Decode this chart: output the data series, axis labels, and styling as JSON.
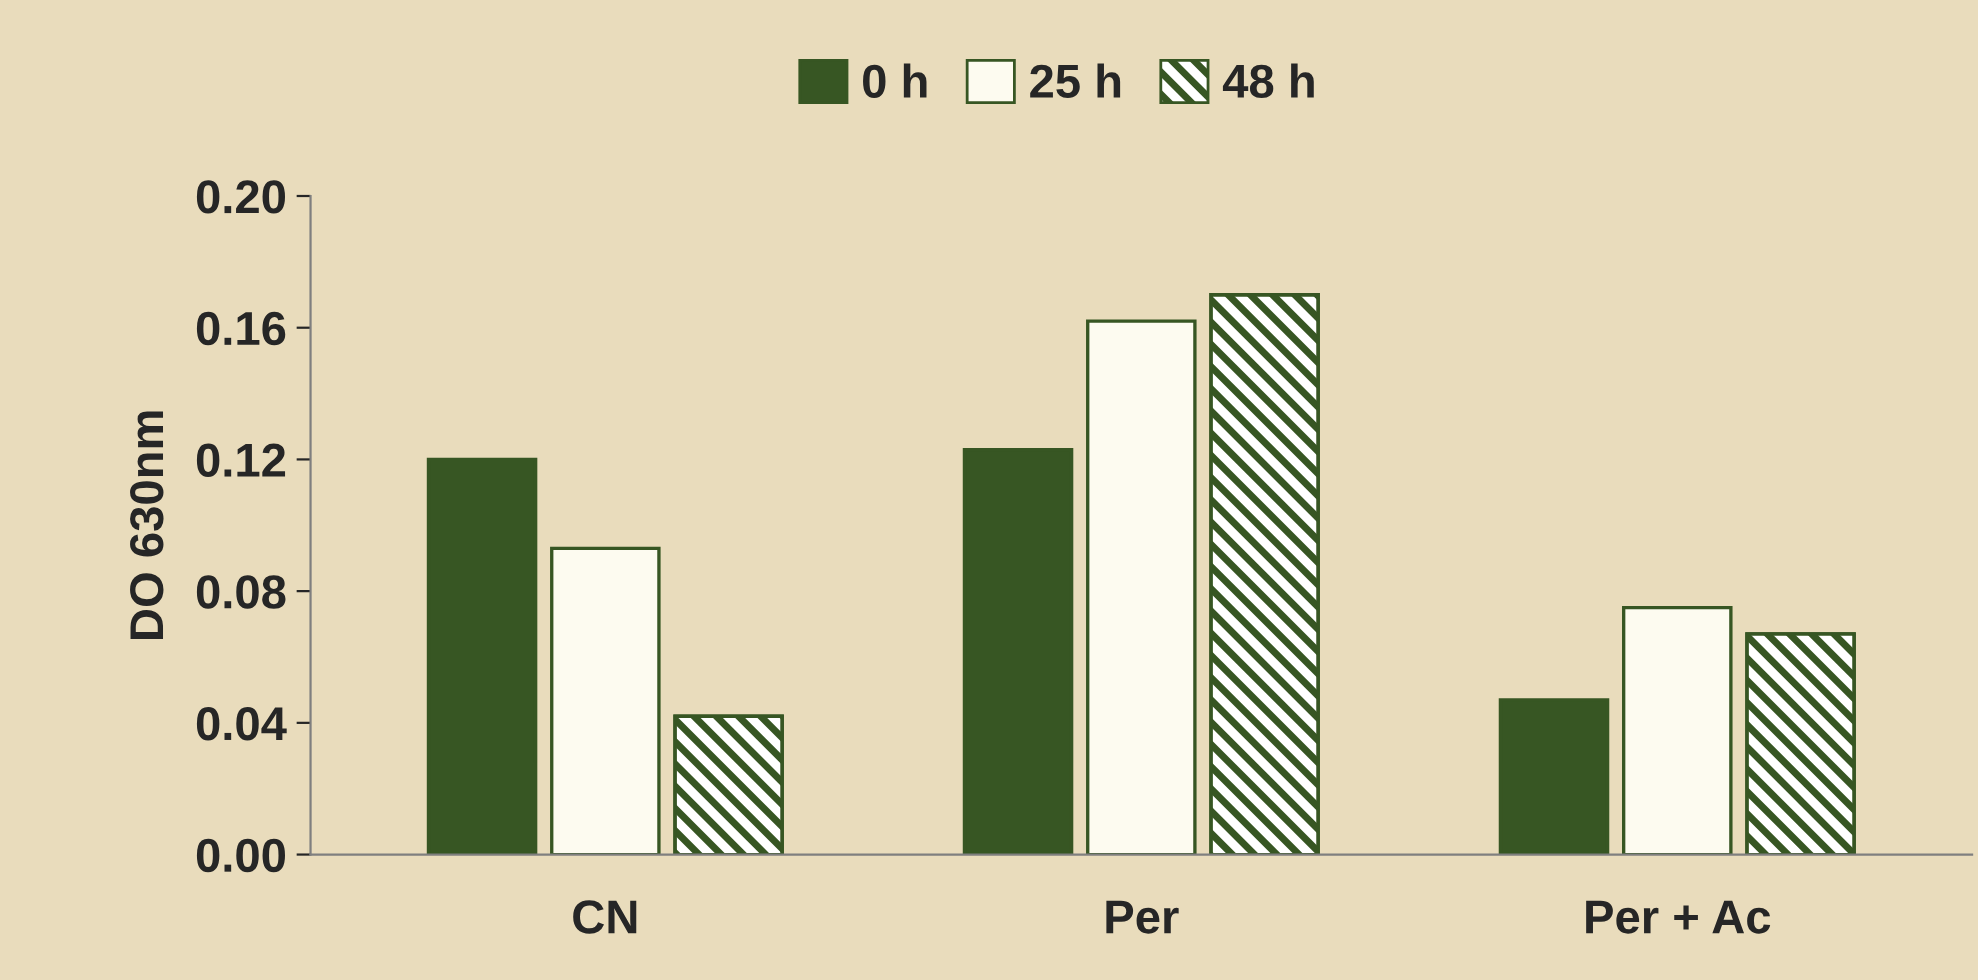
{
  "chart_data": {
    "type": "bar",
    "ylabel": "DO 630nm",
    "categories": [
      "CN",
      "Per",
      "Per + Ac"
    ],
    "series": [
      {
        "name": "0 h",
        "color": "#375623",
        "values": [
          0.12,
          0.123,
          0.047
        ]
      },
      {
        "name": "25 h",
        "color": "#fdfbf0",
        "values": [
          0.093,
          0.162,
          0.075
        ]
      },
      {
        "name": "48 h",
        "color": "#375623",
        "values": [
          0.042,
          0.17,
          0.067
        ]
      }
    ],
    "ylim": [
      0,
      0.2
    ],
    "yticks": [
      {
        "value": 0,
        "label": "0.00"
      },
      {
        "value": 0.04,
        "label": "0.04"
      },
      {
        "value": 0.08,
        "label": "0.08"
      },
      {
        "value": 0.12,
        "label": "0.12"
      },
      {
        "value": 0.16,
        "label": "0.16"
      },
      {
        "value": 0.2,
        "label": "0.20"
      }
    ],
    "grid": false,
    "legend": "top"
  }
}
